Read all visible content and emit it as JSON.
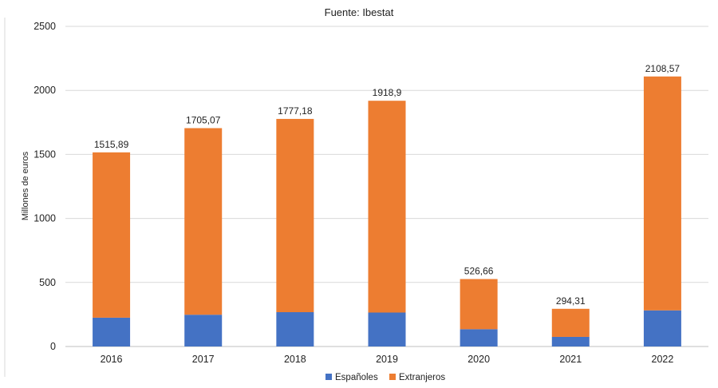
{
  "chart_data": {
    "type": "bar",
    "stacked": true,
    "title": "Fuente: Ibestat",
    "xlabel": "",
    "ylabel": "Millones de euros",
    "ylim": [
      0,
      2500
    ],
    "yticks": [
      0,
      500,
      1000,
      1500,
      2000,
      2500
    ],
    "grid": true,
    "legend_position": "bottom",
    "categories": [
      "2016",
      "2017",
      "2018",
      "2019",
      "2020",
      "2021",
      "2022"
    ],
    "series": [
      {
        "name": "Españoles",
        "color": "#4472c4",
        "values": [
          225,
          248,
          268,
          265,
          135,
          75,
          282
        ]
      },
      {
        "name": "Extranjeros",
        "color": "#ed7d31",
        "values": [
          1290.89,
          1457.07,
          1509.18,
          1653.9,
          391.66,
          219.31,
          1826.57
        ]
      }
    ],
    "totals": [
      1515.89,
      1705.07,
      1777.18,
      1918.9,
      526.66,
      294.31,
      2108.57
    ],
    "total_labels": [
      "1515,89",
      "1705,07",
      "1777,18",
      "1918,9",
      "526,66",
      "294,31",
      "2108,57"
    ]
  }
}
